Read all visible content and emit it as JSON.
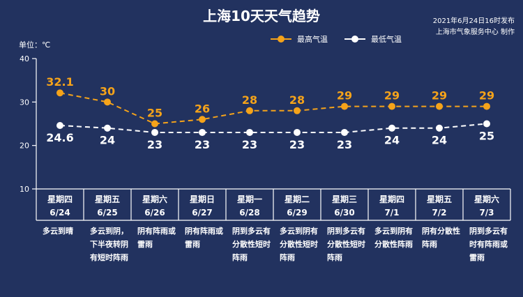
{
  "title": "上海10天天气趋势",
  "publish_time": "2021年6月24日16时发布",
  "publisher": "上海市气象服务中心 制作",
  "unit_label": "单位：℃",
  "colors": {
    "background": "#22325f",
    "high": "#f5a31a",
    "low": "#ffffff",
    "frame": "#ffffff"
  },
  "chart_data": {
    "type": "line",
    "ylim": [
      10,
      40
    ],
    "yticks": [
      10,
      20,
      30,
      40
    ],
    "grid": false,
    "legend_position": "top-right",
    "categories": [
      "6/24",
      "6/25",
      "6/26",
      "6/27",
      "6/28",
      "6/29",
      "6/30",
      "7/1",
      "7/2",
      "7/3"
    ],
    "days": [
      "星期四",
      "星期五",
      "星期六",
      "星期日",
      "星期一",
      "星期二",
      "星期三",
      "星期四",
      "星期五",
      "星期六"
    ],
    "series": [
      {
        "name": "最高气温",
        "values": [
          32.1,
          30,
          25,
          26,
          28,
          28,
          29,
          29,
          29,
          29
        ]
      },
      {
        "name": "最低气温",
        "values": [
          24.6,
          24,
          23,
          23,
          23,
          23,
          23,
          24,
          24,
          25
        ]
      }
    ],
    "conditions": [
      [
        "多云到晴"
      ],
      [
        "多云到阴，",
        "下半夜转阴",
        "有短时阵雨"
      ],
      [
        "阴有阵雨或",
        "雷雨"
      ],
      [
        "阴有阵雨或",
        "雷雨"
      ],
      [
        "阴到多云有",
        "分散性短时",
        "阵雨"
      ],
      [
        "多云到阴有",
        "分散性短时",
        "阵雨"
      ],
      [
        "阴到多云有",
        "分散性短时",
        "阵雨"
      ],
      [
        "多云到阴有",
        "分散性阵雨"
      ],
      [
        "阴有分散性",
        "阵雨"
      ],
      [
        "阴到多云有",
        "时有阵雨或",
        "雷雨"
      ]
    ]
  }
}
